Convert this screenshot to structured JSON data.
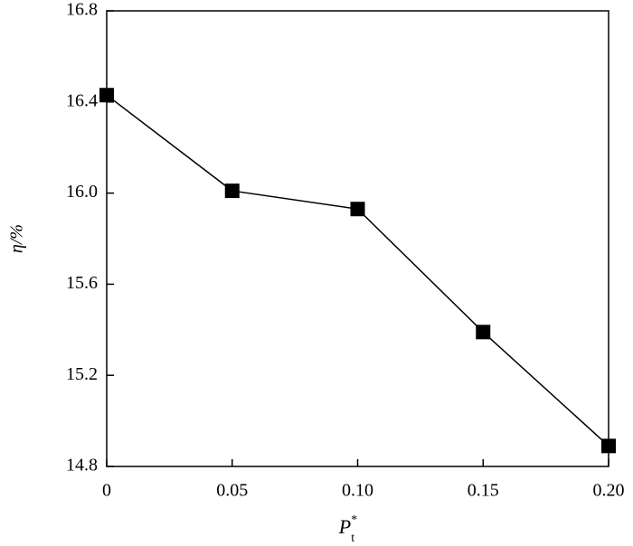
{
  "chart_data": {
    "type": "line",
    "x_label": {
      "main": "P",
      "sup": "*",
      "sub": "t"
    },
    "y_label": "η/%",
    "x": [
      0,
      0.05,
      0.1,
      0.15,
      0.2
    ],
    "series": [
      {
        "color": "#000000",
        "values": [
          16.43,
          16.01,
          15.93,
          15.39,
          14.89
        ]
      }
    ],
    "xlim": [
      0,
      0.2
    ],
    "xticks": [
      0,
      0.05,
      {
        "value": 0.1,
        "label": "0.10"
      },
      0.15,
      {
        "value": 0.2,
        "label": "0.20"
      }
    ],
    "ylim": [
      14.8,
      16.8
    ],
    "yticks": [
      14.8,
      15.2,
      15.6,
      {
        "value": 16.0,
        "label": "16.0"
      },
      16.4,
      16.8
    ],
    "marker": "square"
  }
}
